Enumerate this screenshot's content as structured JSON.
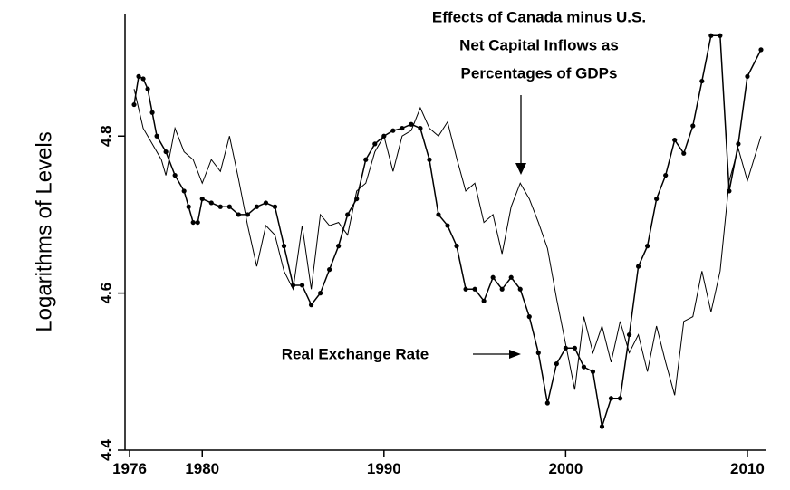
{
  "chart_data": {
    "type": "line",
    "y_label": "Logarithms of Levels",
    "annotations": [
      {
        "text": [
          "Effects of Canada minus U.S.",
          "Net Capital Inflows as",
          "Percentages of GDPs"
        ]
      },
      {
        "text": [
          "Real Exchange Rate"
        ]
      }
    ],
    "xlim": [
      1975.75,
      2011
    ],
    "xticks": [
      1976,
      1980,
      1990,
      2000,
      2010
    ],
    "ylim": [
      4.4,
      4.956
    ],
    "yticks": [
      {
        "value": 4.4,
        "label": "4.4"
      },
      {
        "value": 4.6,
        "label": "4.6"
      },
      {
        "value": 4.8,
        "label": "4.8"
      }
    ],
    "series": [
      {
        "color": "#000000",
        "markers": true,
        "x": [
          1976.25,
          1976.5,
          1976.75,
          1977,
          1977.25,
          1977.5,
          1978,
          1978.5,
          1979,
          1979.25,
          1979.5,
          1979.75,
          1980,
          1980.5,
          1981,
          1981.5,
          1982,
          1982.5,
          1983,
          1983.5,
          1984,
          1984.5,
          1985,
          1985.5,
          1986,
          1986.5,
          1987,
          1987.5,
          1988,
          1988.5,
          1989,
          1989.5,
          1990,
          1990.5,
          1991,
          1991.5,
          1992,
          1992.5,
          1993,
          1993.5,
          1994,
          1994.5,
          1995,
          1995.5,
          1996,
          1996.5,
          1997,
          1997.5,
          1998,
          1998.5,
          1999,
          1999.5,
          2000,
          2000.5,
          2001,
          2001.5,
          2002,
          2002.5,
          2003,
          2003.5,
          2004,
          2004.5,
          2005,
          2005.5,
          2006,
          2006.5,
          2007,
          2007.5,
          2008,
          2008.5,
          2009,
          2009.5,
          2010,
          2010.75
        ],
        "values": [
          4.84,
          4.876,
          4.873,
          4.86,
          4.83,
          4.8,
          4.78,
          4.75,
          4.73,
          4.71,
          4.69,
          4.69,
          4.72,
          4.715,
          4.71,
          4.71,
          4.7,
          4.7,
          4.71,
          4.715,
          4.71,
          4.66,
          4.61,
          4.61,
          4.585,
          4.6,
          4.63,
          4.66,
          4.7,
          4.72,
          4.77,
          4.79,
          4.8,
          4.807,
          4.81,
          4.815,
          4.81,
          4.77,
          4.7,
          4.686,
          4.66,
          4.605,
          4.605,
          4.59,
          4.62,
          4.605,
          4.62,
          4.605,
          4.57,
          4.524,
          4.46,
          4.51,
          4.53,
          4.53,
          4.506,
          4.5,
          4.43,
          4.466,
          4.466,
          4.547,
          4.634,
          4.66,
          4.72,
          4.75,
          4.795,
          4.778,
          4.813,
          4.87,
          4.928,
          4.928,
          4.73,
          4.79,
          4.876,
          4.91
        ]
      },
      {
        "color": "#000000",
        "markers": false,
        "x": [
          1976.25,
          1976.75,
          1977.25,
          1977.75,
          1978,
          1978.5,
          1979,
          1979.5,
          1980,
          1980.5,
          1981,
          1981.5,
          1982,
          1982.5,
          1983,
          1983.5,
          1984,
          1984.5,
          1985,
          1985.5,
          1986,
          1986.5,
          1987,
          1987.5,
          1988,
          1988.5,
          1989,
          1989.5,
          1990,
          1990.5,
          1991,
          1991.5,
          1992,
          1992.5,
          1993,
          1993.5,
          1994,
          1994.5,
          1995,
          1995.5,
          1996,
          1996.5,
          1997,
          1997.5,
          1998,
          1998.5,
          1999,
          1999.5,
          2000,
          2000.5,
          2001,
          2001.5,
          2002,
          2002.5,
          2003,
          2003.5,
          2004,
          2004.5,
          2005,
          2005.5,
          2006,
          2006.5,
          2007,
          2007.5,
          2008,
          2008.5,
          2009,
          2009.5,
          2010,
          2010.75
        ],
        "values": [
          4.86,
          4.81,
          4.79,
          4.77,
          4.75,
          4.81,
          4.78,
          4.77,
          4.74,
          4.77,
          4.755,
          4.8,
          4.745,
          4.686,
          4.634,
          4.686,
          4.674,
          4.628,
          4.605,
          4.686,
          4.605,
          4.7,
          4.686,
          4.69,
          4.674,
          4.73,
          4.74,
          4.78,
          4.8,
          4.755,
          4.8,
          4.807,
          4.836,
          4.81,
          4.8,
          4.818,
          4.772,
          4.73,
          4.74,
          4.69,
          4.7,
          4.65,
          4.71,
          4.74,
          4.72,
          4.69,
          4.657,
          4.593,
          4.535,
          4.477,
          4.57,
          4.524,
          4.558,
          4.512,
          4.564,
          4.524,
          4.547,
          4.5,
          4.558,
          4.512,
          4.47,
          4.564,
          4.57,
          4.628,
          4.576,
          4.628,
          4.743,
          4.784,
          4.743,
          4.8
        ]
      }
    ]
  }
}
